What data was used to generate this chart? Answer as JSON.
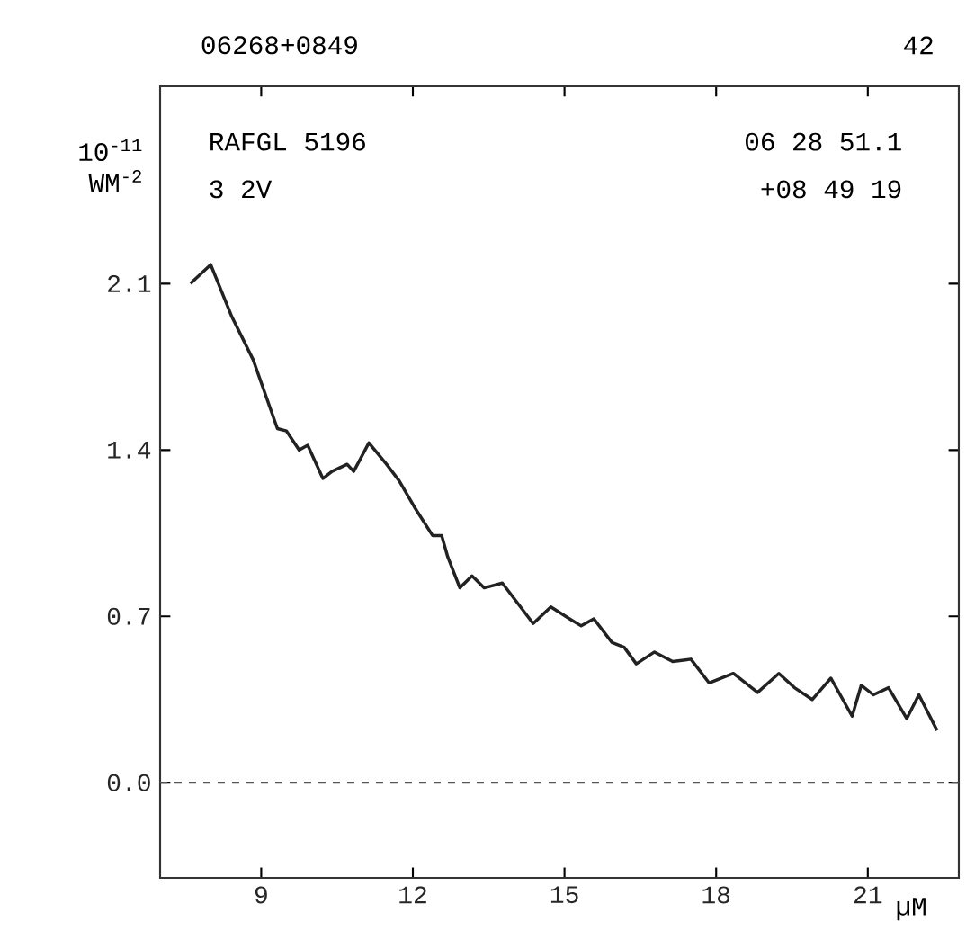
{
  "chart_data": {
    "type": "line",
    "title": "06268+0849",
    "ylabel": "10$^{-11}$ WM$^{-2}$",
    "xlabel": "µM",
    "annotations": [
      "42",
      "RAFGL 5196",
      "3 2V",
      "06 28 51.1",
      "+08 49 19"
    ],
    "x": [
      7.6,
      8.0,
      8.42,
      8.84,
      9.32,
      9.5,
      9.75,
      9.92,
      10.22,
      10.4,
      10.7,
      10.83,
      11.13,
      11.48,
      11.73,
      12.03,
      12.39,
      12.57,
      12.69,
      12.93,
      13.17,
      13.41,
      13.77,
      14.38,
      14.73,
      15.1,
      15.33,
      15.58,
      15.94,
      16.18,
      16.42,
      16.78,
      17.14,
      17.5,
      17.86,
      18.34,
      18.82,
      19.24,
      19.55,
      19.9,
      20.27,
      20.69,
      20.87,
      21.11,
      21.41,
      21.77,
      22.01,
      22.37
    ],
    "series": [
      {
        "color": "#222222",
        "values": [
          2.1,
          2.18,
          1.96,
          1.78,
          1.49,
          1.48,
          1.4,
          1.42,
          1.28,
          1.31,
          1.34,
          1.31,
          1.43,
          1.34,
          1.27,
          1.16,
          1.04,
          1.04,
          0.95,
          0.82,
          0.87,
          0.82,
          0.84,
          0.67,
          0.74,
          0.69,
          0.66,
          0.69,
          0.59,
          0.57,
          0.5,
          0.55,
          0.51,
          0.52,
          0.42,
          0.46,
          0.38,
          0.46,
          0.4,
          0.35,
          0.44,
          0.28,
          0.41,
          0.37,
          0.4,
          0.27,
          0.37,
          0.22
        ]
      }
    ],
    "xlim": [
      7,
      22.8
    ],
    "ylim": [
      -0.4,
      2.93
    ],
    "xticks": [
      9,
      12,
      15,
      18,
      21
    ],
    "yticks": [
      {
        "value": 0,
        "label": "0.0"
      },
      0.7,
      1.4,
      2.1
    ],
    "ref_lines": [
      {
        "axis": "y",
        "value": 0,
        "color": "#555555",
        "line_style": "dashed"
      }
    ],
    "marker": "none",
    "line_style": "solid"
  }
}
